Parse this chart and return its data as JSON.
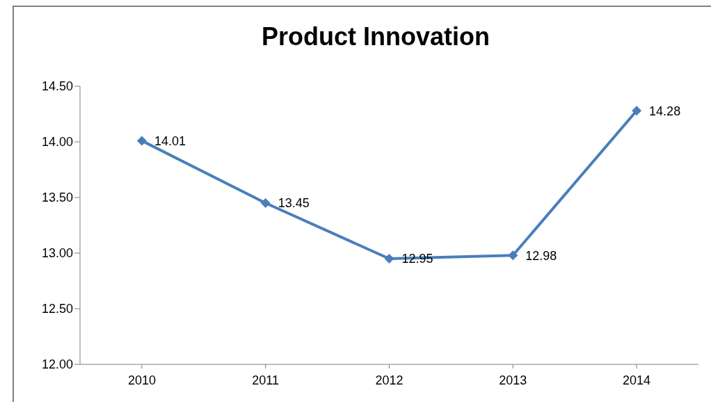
{
  "chart_data": {
    "type": "line",
    "title": "Product Innovation",
    "categories": [
      "2010",
      "2011",
      "2012",
      "2013",
      "2014"
    ],
    "series": [
      {
        "color": "#4a7ebb",
        "values": [
          14.01,
          13.45,
          12.95,
          12.98,
          14.28
        ]
      }
    ],
    "ylim": [
      12,
      14.5
    ],
    "yticks": [
      {
        "value": 12,
        "label": "12.00"
      },
      {
        "value": 12.5,
        "label": "12.50"
      },
      {
        "value": 13,
        "label": "13.00"
      },
      {
        "value": 13.5,
        "label": "13.50"
      },
      {
        "value": 14,
        "label": "14.00"
      },
      {
        "value": 14.5,
        "label": "14.50"
      }
    ],
    "marker": "diamond",
    "line_style": "solid",
    "data_labels": true
  }
}
